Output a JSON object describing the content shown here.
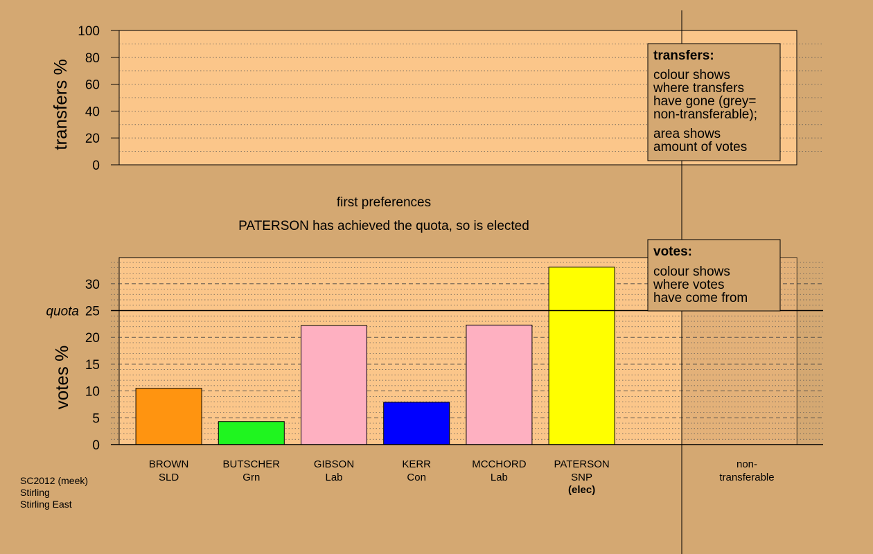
{
  "colors": {
    "background": "#d4a872",
    "panel": "#fbc68a",
    "right_panel": "#d9a872",
    "legend_box": "#d4a872"
  },
  "top_panel": {
    "ylabel": "transfers %",
    "ticks": [
      "0",
      "20",
      "40",
      "60",
      "80",
      "100"
    ],
    "legend": {
      "title": "transfers:",
      "lines_a": [
        "colour shows",
        "where transfers",
        "have gone (grey=",
        "non-transferable);"
      ],
      "lines_b": [
        "area shows",
        "amount of votes"
      ]
    }
  },
  "middle": {
    "stage": "first preferences",
    "message": "PATERSON has achieved the quota, so is elected"
  },
  "bottom_panel": {
    "ylabel": "votes %",
    "quota_label": "quota",
    "legend": {
      "title": "votes:",
      "lines": [
        "colour shows",
        "where votes",
        "have come from"
      ]
    }
  },
  "candidates": [
    {
      "name": "BROWN",
      "party": "SLD",
      "status": ""
    },
    {
      "name": "BUTSCHER",
      "party": "Grn",
      "status": ""
    },
    {
      "name": "GIBSON",
      "party": "Lab",
      "status": ""
    },
    {
      "name": "KERR",
      "party": "Con",
      "status": ""
    },
    {
      "name": "MCCHORD",
      "party": "Lab",
      "status": ""
    },
    {
      "name": "PATERSON",
      "party": "SNP",
      "status": "(elec)"
    }
  ],
  "nontransferable_label": [
    "non-",
    "transferable"
  ],
  "footer": [
    "SC2012 (meek)",
    "Stirling",
    "Stirling East"
  ],
  "chart_data": [
    {
      "type": "bar",
      "title": "",
      "ylabel": "transfers %",
      "ylim": [
        0,
        100
      ],
      "yticks": [
        0,
        20,
        40,
        60,
        80,
        100
      ],
      "categories": [],
      "values": []
    },
    {
      "type": "bar",
      "title": "first preferences",
      "ylabel": "votes %",
      "ylim": [
        0,
        35
      ],
      "yticks": [
        0,
        5,
        10,
        15,
        20,
        25,
        30
      ],
      "quota": 25,
      "categories": [
        "BROWN SLD",
        "BUTSCHER Grn",
        "GIBSON Lab",
        "KERR Con",
        "MCCHORD Lab",
        "PATERSON SNP"
      ],
      "values": [
        10.5,
        4.3,
        22.2,
        7.9,
        22.3,
        33.1
      ],
      "colors": [
        "#ff9410",
        "#1ff51f",
        "#feb0c1",
        "#0000ff",
        "#feb0c1",
        "#ffff00"
      ],
      "grid": true
    }
  ]
}
